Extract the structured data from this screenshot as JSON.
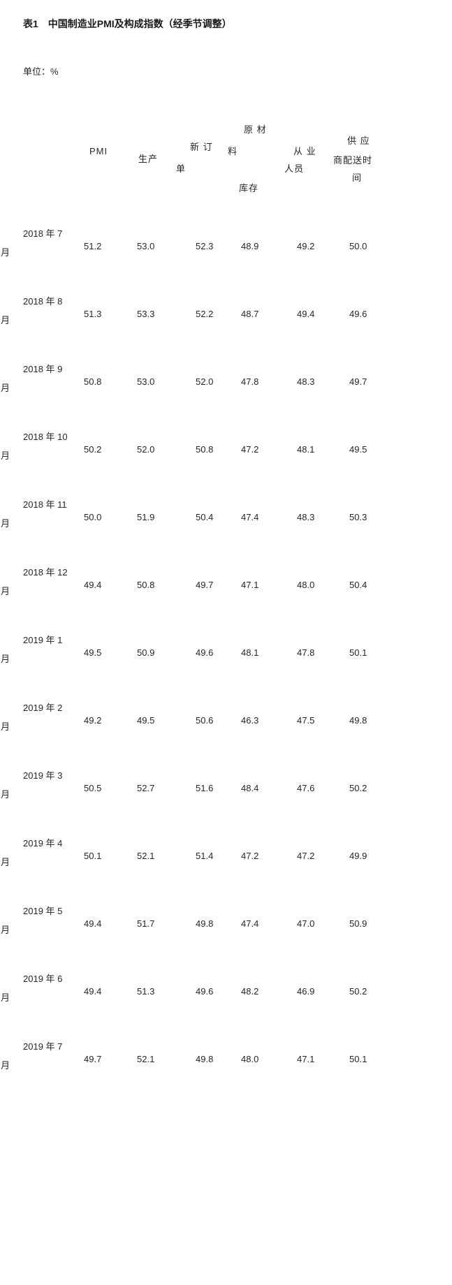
{
  "title": "表1　中国制造业PMI及构成指数（经季节调整）",
  "unit_label": "单位：%",
  "table": {
    "columns": [
      "PMI",
      "生产",
      "新订单",
      "原材料库存",
      "从业人员",
      "供应商配送时间"
    ],
    "header": {
      "pmi": "PMI",
      "production": "生产",
      "new_orders_l1": "新 订",
      "new_orders_l2": "单",
      "raw_materials_l1": "原 材",
      "raw_materials_l2": "料",
      "raw_materials_l3": "库存",
      "employment_l1": "从 业",
      "employment_l2": "人员",
      "supplier_l1": "供 应",
      "supplier_l2": "商配送时",
      "supplier_l3": "间"
    },
    "rows": [
      {
        "label": "2018 年 7",
        "suffix": "月",
        "values": [
          "51.2",
          "53.0",
          "52.3",
          "48.9",
          "49.2",
          "50.0"
        ]
      },
      {
        "label": "2018 年 8",
        "suffix": "月",
        "values": [
          "51.3",
          "53.3",
          "52.2",
          "48.7",
          "49.4",
          "49.6"
        ]
      },
      {
        "label": "2018 年 9",
        "suffix": "月",
        "values": [
          "50.8",
          "53.0",
          "52.0",
          "47.8",
          "48.3",
          "49.7"
        ]
      },
      {
        "label": "2018 年 10",
        "suffix": "月",
        "values": [
          "50.2",
          "52.0",
          "50.8",
          "47.2",
          "48.1",
          "49.5"
        ]
      },
      {
        "label": "2018 年 11",
        "suffix": "月",
        "values": [
          "50.0",
          "51.9",
          "50.4",
          "47.4",
          "48.3",
          "50.3"
        ]
      },
      {
        "label": "2018 年 12",
        "suffix": "月",
        "values": [
          "49.4",
          "50.8",
          "49.7",
          "47.1",
          "48.0",
          "50.4"
        ]
      },
      {
        "label": "2019 年 1",
        "suffix": "月",
        "values": [
          "49.5",
          "50.9",
          "49.6",
          "48.1",
          "47.8",
          "50.1"
        ]
      },
      {
        "label": "2019 年 2",
        "suffix": "月",
        "values": [
          "49.2",
          "49.5",
          "50.6",
          "46.3",
          "47.5",
          "49.8"
        ]
      },
      {
        "label": "2019 年 3",
        "suffix": "月",
        "values": [
          "50.5",
          "52.7",
          "51.6",
          "48.4",
          "47.6",
          "50.2"
        ]
      },
      {
        "label": "2019 年 4",
        "suffix": "月",
        "values": [
          "50.1",
          "52.1",
          "51.4",
          "47.2",
          "47.2",
          "49.9"
        ]
      },
      {
        "label": "2019 年 5",
        "suffix": "月",
        "values": [
          "49.4",
          "51.7",
          "49.8",
          "47.4",
          "47.0",
          "50.9"
        ]
      },
      {
        "label": "2019 年 6",
        "suffix": "月",
        "values": [
          "49.4",
          "51.3",
          "49.6",
          "48.2",
          "46.9",
          "50.2"
        ]
      },
      {
        "label": "2019 年 7",
        "suffix": "月",
        "values": [
          "49.7",
          "52.1",
          "49.8",
          "48.0",
          "47.1",
          "50.1"
        ]
      }
    ]
  },
  "chart_data": {
    "type": "table",
    "title": "表1 中国制造业PMI及构成指数（经季节调整）",
    "unit": "%",
    "columns": [
      "PMI",
      "生产",
      "新订单",
      "原材料库存",
      "从业人员",
      "供应商配送时间"
    ],
    "row_labels": [
      "2018年7月",
      "2018年8月",
      "2018年9月",
      "2018年10月",
      "2018年11月",
      "2018年12月",
      "2019年1月",
      "2019年2月",
      "2019年3月",
      "2019年4月",
      "2019年5月",
      "2019年6月",
      "2019年7月"
    ],
    "values": [
      [
        51.2,
        53.0,
        52.3,
        48.9,
        49.2,
        50.0
      ],
      [
        51.3,
        53.3,
        52.2,
        48.7,
        49.4,
        49.6
      ],
      [
        50.8,
        53.0,
        52.0,
        47.8,
        48.3,
        49.7
      ],
      [
        50.2,
        52.0,
        50.8,
        47.2,
        48.1,
        49.5
      ],
      [
        50.0,
        51.9,
        50.4,
        47.4,
        48.3,
        50.3
      ],
      [
        49.4,
        50.8,
        49.7,
        47.1,
        48.0,
        50.4
      ],
      [
        49.5,
        50.9,
        49.6,
        48.1,
        47.8,
        50.1
      ],
      [
        49.2,
        49.5,
        50.6,
        46.3,
        47.5,
        49.8
      ],
      [
        50.5,
        52.7,
        51.6,
        48.4,
        47.6,
        50.2
      ],
      [
        50.1,
        52.1,
        51.4,
        47.2,
        47.2,
        49.9
      ],
      [
        49.4,
        51.7,
        49.8,
        47.4,
        47.0,
        50.9
      ],
      [
        49.4,
        51.3,
        49.6,
        48.2,
        46.9,
        50.2
      ],
      [
        49.7,
        52.1,
        49.8,
        48.0,
        47.1,
        50.1
      ]
    ]
  }
}
